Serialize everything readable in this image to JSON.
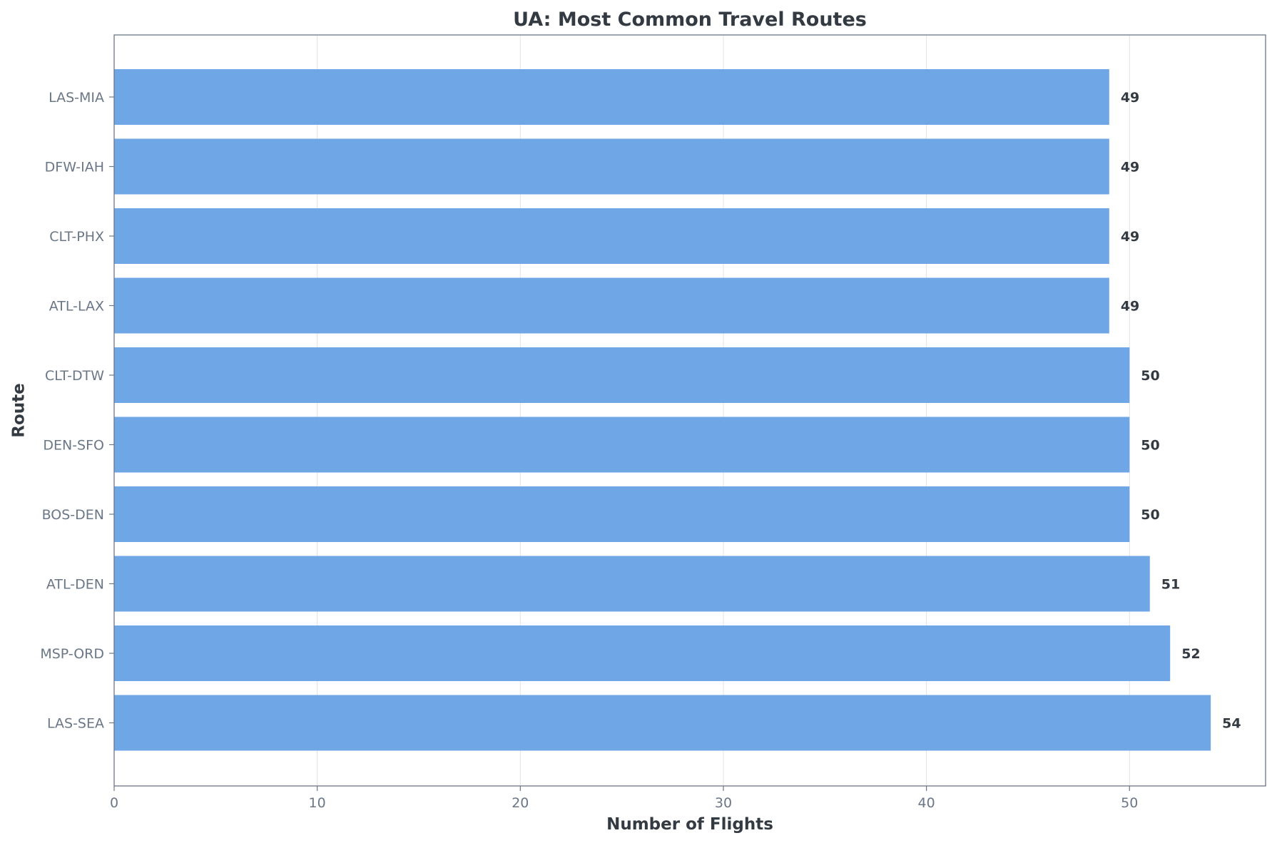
{
  "chart_data": {
    "type": "bar",
    "orientation": "horizontal",
    "title": "UA: Most Common Travel Routes",
    "xlabel": "Number of Flights",
    "ylabel": "Route",
    "categories": [
      "LAS-SEA",
      "MSP-ORD",
      "ATL-DEN",
      "BOS-DEN",
      "DEN-SFO",
      "CLT-DTW",
      "ATL-LAX",
      "CLT-PHX",
      "DFW-IAH",
      "LAS-MIA"
    ],
    "values": [
      54,
      52,
      51,
      50,
      50,
      50,
      49,
      49,
      49,
      49
    ],
    "xlim": [
      0,
      56.7
    ],
    "xticks": [
      0,
      10,
      20,
      30,
      40,
      50
    ],
    "grid": "vertical",
    "bar_color": "#6fa6e6",
    "data_labels": true
  }
}
